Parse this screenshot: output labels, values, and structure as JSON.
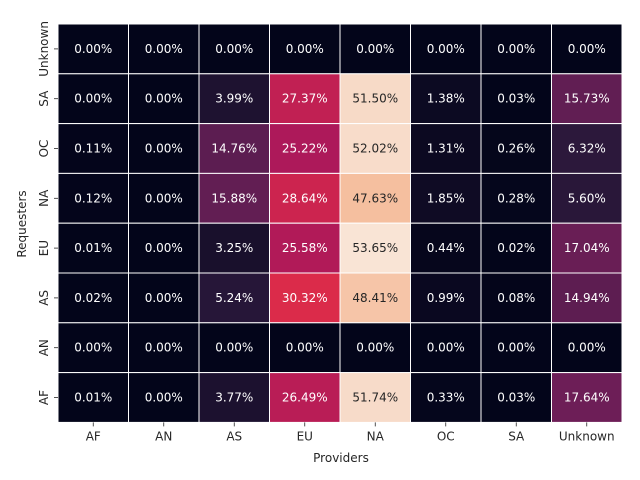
{
  "chart_data": {
    "type": "heatmap",
    "xlabel": "Providers",
    "ylabel": "Requesters",
    "x_categories": [
      "AF",
      "AN",
      "AS",
      "EU",
      "NA",
      "OC",
      "SA",
      "Unknown"
    ],
    "y_categories_top_to_bottom": [
      "Unknown",
      "SA",
      "OC",
      "NA",
      "EU",
      "AS",
      "AN",
      "AF"
    ],
    "value_unit": "%",
    "colormap": "rocket",
    "color_range": [
      0,
      55
    ],
    "values": [
      [
        0.0,
        0.0,
        0.0,
        0.0,
        0.0,
        0.0,
        0.0,
        0.0
      ],
      [
        0.0,
        0.0,
        3.99,
        27.37,
        51.5,
        1.38,
        0.03,
        15.73
      ],
      [
        0.11,
        0.0,
        14.76,
        25.22,
        52.02,
        1.31,
        0.26,
        6.32
      ],
      [
        0.12,
        0.0,
        15.88,
        28.64,
        47.63,
        1.85,
        0.28,
        5.6
      ],
      [
        0.01,
        0.0,
        3.25,
        25.58,
        53.65,
        0.44,
        0.02,
        17.04
      ],
      [
        0.02,
        0.0,
        5.24,
        30.32,
        48.41,
        0.99,
        0.08,
        14.94
      ],
      [
        0.0,
        0.0,
        0.0,
        0.0,
        0.0,
        0.0,
        0.0,
        0.0
      ],
      [
        0.01,
        0.0,
        3.77,
        26.49,
        51.74,
        0.33,
        0.03,
        17.64
      ]
    ],
    "labels": [
      [
        "0.00%",
        "0.00%",
        "0.00%",
        "0.00%",
        "0.00%",
        "0.00%",
        "0.00%",
        "0.00%"
      ],
      [
        "0.00%",
        "0.00%",
        "3.99%",
        "27.37%",
        "51.50%",
        "1.38%",
        "0.03%",
        "15.73%"
      ],
      [
        "0.11%",
        "0.00%",
        "14.76%",
        "25.22%",
        "52.02%",
        "1.31%",
        "0.26%",
        "6.32%"
      ],
      [
        "0.12%",
        "0.00%",
        "15.88%",
        "28.64%",
        "47.63%",
        "1.85%",
        "0.28%",
        "5.60%"
      ],
      [
        "0.01%",
        "0.00%",
        "3.25%",
        "25.58%",
        "53.65%",
        "0.44%",
        "0.02%",
        "17.04%"
      ],
      [
        "0.02%",
        "0.00%",
        "5.24%",
        "30.32%",
        "48.41%",
        "0.99%",
        "0.08%",
        "14.94%"
      ],
      [
        "0.00%",
        "0.00%",
        "0.00%",
        "0.00%",
        "0.00%",
        "0.00%",
        "0.00%",
        "0.00%"
      ],
      [
        "0.01%",
        "0.00%",
        "3.77%",
        "26.49%",
        "51.74%",
        "0.33%",
        "0.03%",
        "17.64%"
      ]
    ],
    "grid": false,
    "legend": "none"
  }
}
